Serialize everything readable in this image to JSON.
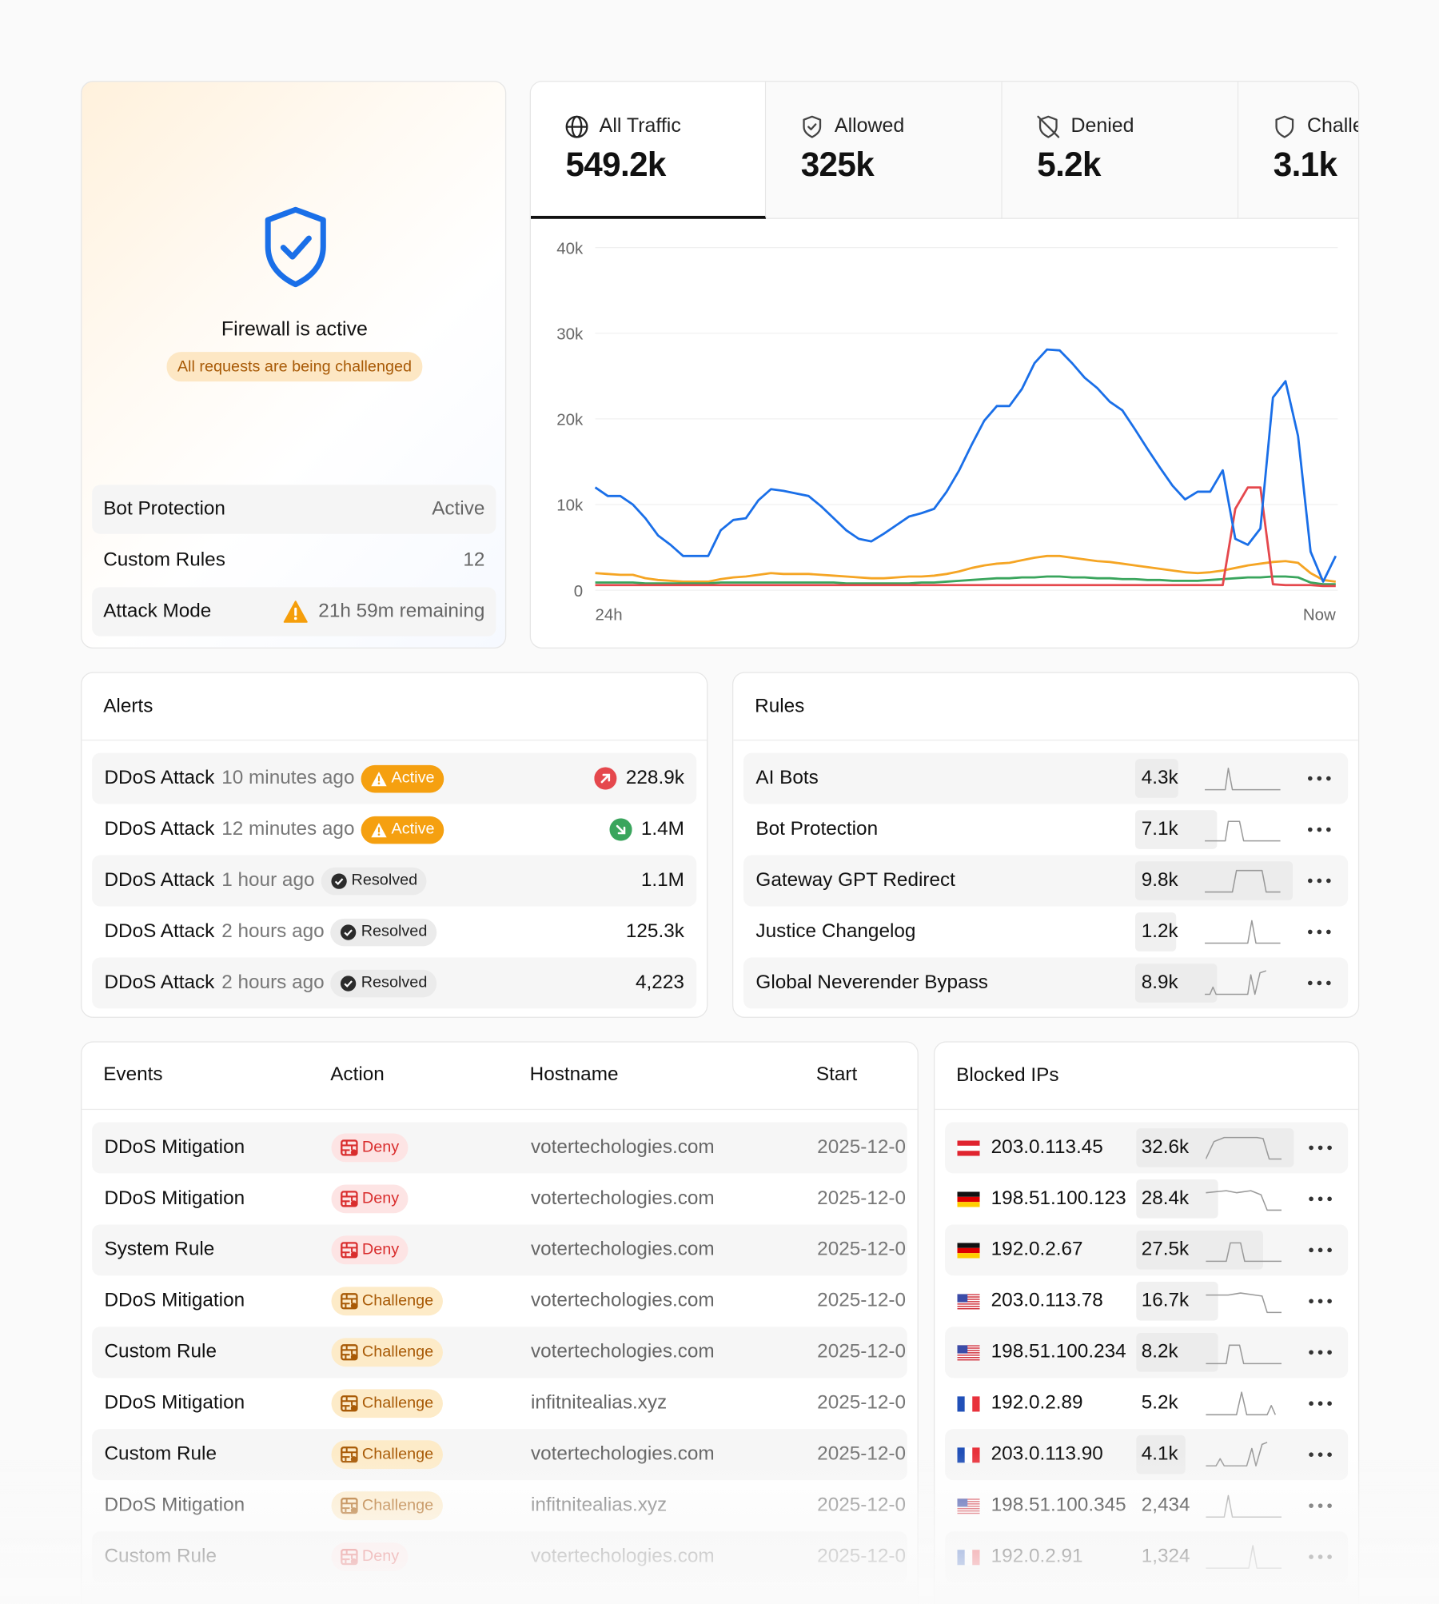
{
  "firewall": {
    "status": "Firewall is active",
    "badge": "All requests are being challenged",
    "settings": [
      {
        "label": "Bot Protection",
        "value": "Active"
      },
      {
        "label": "Custom Rules",
        "value": "12"
      },
      {
        "label": "Attack Mode",
        "value": "21h 59m remaining"
      }
    ]
  },
  "tabs": [
    {
      "label": "All Traffic",
      "value": "549.2k"
    },
    {
      "label": "Allowed",
      "value": "325k"
    },
    {
      "label": "Denied",
      "value": "5.2k"
    },
    {
      "label": "Challenged",
      "value": "3.1k"
    }
  ],
  "chart_data": {
    "type": "line",
    "categories": [
      "24h",
      null,
      null,
      null,
      null,
      null,
      null,
      null,
      null,
      null,
      null,
      null,
      null,
      null,
      null,
      null,
      null,
      null,
      null,
      null,
      null,
      null,
      null,
      null,
      null,
      null,
      null,
      null,
      null,
      null,
      null,
      null,
      null,
      null,
      null,
      null,
      null,
      null,
      null,
      null,
      null,
      null,
      null,
      null,
      null,
      null,
      null,
      null,
      null,
      null,
      null,
      null,
      null,
      null,
      null,
      null,
      null,
      null,
      null,
      "Now"
    ],
    "series": [
      {
        "color": "#f5a524",
        "values": [
          2000,
          1900,
          1800,
          1800,
          1400,
          1200,
          1100,
          1000,
          1000,
          1000,
          1300,
          1500,
          1600,
          1800,
          2000,
          1900,
          1900,
          1900,
          1800,
          1700,
          1600,
          1500,
          1400,
          1400,
          1500,
          1600,
          1600,
          1700,
          1900,
          2200,
          2600,
          2900,
          3100,
          3200,
          3500,
          3800,
          4000,
          4000,
          3800,
          3600,
          3400,
          3300,
          3100,
          2900,
          2700,
          2500,
          2300,
          2100,
          2000,
          2100,
          2300,
          2600,
          2900,
          3100,
          3300,
          3400,
          3200,
          2000,
          1200,
          1000
        ]
      },
      {
        "color": "#3aa55d",
        "values": [
          900,
          900,
          900,
          900,
          800,
          800,
          800,
          800,
          800,
          800,
          900,
          900,
          900,
          900,
          900,
          900,
          900,
          900,
          900,
          900,
          800,
          800,
          800,
          800,
          800,
          800,
          900,
          900,
          1000,
          1100,
          1200,
          1300,
          1400,
          1400,
          1500,
          1500,
          1600,
          1600,
          1500,
          1500,
          1400,
          1400,
          1300,
          1300,
          1200,
          1200,
          1100,
          1100,
          1100,
          1200,
          1300,
          1400,
          1500,
          1500,
          1600,
          1600,
          1500,
          900,
          700,
          700
        ]
      },
      {
        "color": "#e5484d",
        "values": [
          600,
          600,
          600,
          600,
          600,
          600,
          600,
          600,
          600,
          600,
          600,
          600,
          600,
          600,
          600,
          600,
          600,
          600,
          600,
          600,
          600,
          600,
          600,
          600,
          600,
          600,
          600,
          600,
          600,
          600,
          600,
          600,
          600,
          600,
          600,
          600,
          600,
          600,
          600,
          600,
          600,
          600,
          600,
          600,
          600,
          600,
          600,
          600,
          600,
          600,
          600,
          9500,
          12000,
          12000,
          700,
          600,
          600,
          600,
          500,
          500
        ]
      },
      {
        "color": "#1a6fe8",
        "values": [
          12000,
          11000,
          11000,
          10000,
          8400,
          6400,
          5300,
          4000,
          4000,
          4000,
          7000,
          8200,
          8400,
          10500,
          11800,
          11600,
          11300,
          11000,
          9800,
          8400,
          7000,
          6000,
          5700,
          6600,
          7600,
          8600,
          9000,
          9500,
          11500,
          14000,
          17000,
          19800,
          21500,
          21500,
          23500,
          26500,
          28100,
          28000,
          26500,
          24800,
          23600,
          22000,
          21000,
          18800,
          16500,
          14300,
          12200,
          10600,
          11500,
          11500,
          14000,
          6000,
          5300,
          7200,
          22500,
          24400,
          18000,
          4500,
          1000,
          4000
        ]
      }
    ],
    "ylim": [
      0,
      40000
    ],
    "yticks": [
      0,
      {
        "value": 10000,
        "label": "10k"
      },
      {
        "value": 20000,
        "label": "20k"
      },
      {
        "value": 30000,
        "label": "30k"
      },
      {
        "value": 40000,
        "label": "40k"
      }
    ],
    "grid": true
  },
  "alerts": {
    "title": "Alerts",
    "rows": [
      {
        "name": "DDoS Attack",
        "time": "10 minutes ago",
        "status": "Active",
        "value": "228.9k"
      },
      {
        "name": "DDoS Attack",
        "time": "12 minutes ago",
        "status": "Active",
        "value": "1.4M"
      },
      {
        "name": "DDoS Attack",
        "time": "1 hour ago",
        "status": "Resolved",
        "value": "1.1M"
      },
      {
        "name": "DDoS Attack",
        "time": "2 hours ago",
        "status": "Resolved",
        "value": "125.3k"
      },
      {
        "name": "DDoS Attack",
        "time": "2 hours ago",
        "status": "Resolved",
        "value": "4,223"
      }
    ]
  },
  "rules": {
    "title": "Rules",
    "rows": [
      {
        "name": "AI Bots",
        "value": "4.3k"
      },
      {
        "name": "Bot Protection",
        "value": "7.1k"
      },
      {
        "name": "Gateway GPT Redirect",
        "value": "9.8k"
      },
      {
        "name": "Justice Changelog",
        "value": "1.2k"
      },
      {
        "name": "Global Neverender Bypass",
        "value": "8.9k"
      }
    ]
  },
  "events": {
    "columns": [
      "Events",
      "Action",
      "Hostname",
      "Start"
    ],
    "rows": [
      [
        "DDoS Mitigation",
        "Deny",
        "votertechologies.com",
        "2025-12-0"
      ],
      [
        "DDoS Mitigation",
        "Deny",
        "votertechologies.com",
        "2025-12-0"
      ],
      [
        "System Rule",
        "Deny",
        "votertechologies.com",
        "2025-12-0"
      ],
      [
        "DDoS Mitigation",
        "Challenge",
        "votertechologies.com",
        "2025-12-0"
      ],
      [
        "Custom Rule",
        "Challenge",
        "votertechologies.com",
        "2025-12-0"
      ],
      [
        "DDoS Mitigation",
        "Challenge",
        "infitnitealias.xyz",
        "2025-12-0"
      ],
      [
        "Custom Rule",
        "Challenge",
        "votertechologies.com",
        "2025-12-0"
      ],
      [
        "DDoS Mitigation",
        "Challenge",
        "infitnitealias.xyz",
        "2025-12-0"
      ],
      [
        "Custom Rule",
        "Deny",
        "votertechologies.com",
        "2025-12-0"
      ]
    ]
  },
  "blocked_ips": {
    "title": "Blocked IPs",
    "rows": [
      {
        "ip": "203.0.113.45",
        "value": "32.6k"
      },
      {
        "ip": "198.51.100.123",
        "value": "28.4k"
      },
      {
        "ip": "192.0.2.67",
        "value": "27.5k"
      },
      {
        "ip": "203.0.113.78",
        "value": "16.7k"
      },
      {
        "ip": "198.51.100.234",
        "value": "8.2k"
      },
      {
        "ip": "192.0.2.89",
        "value": "5.2k"
      },
      {
        "ip": "203.0.113.90",
        "value": "4.1k"
      },
      {
        "ip": "198.51.100.345",
        "value": "2,434"
      },
      {
        "ip": "192.0.2.91",
        "value": "1,324"
      }
    ]
  }
}
